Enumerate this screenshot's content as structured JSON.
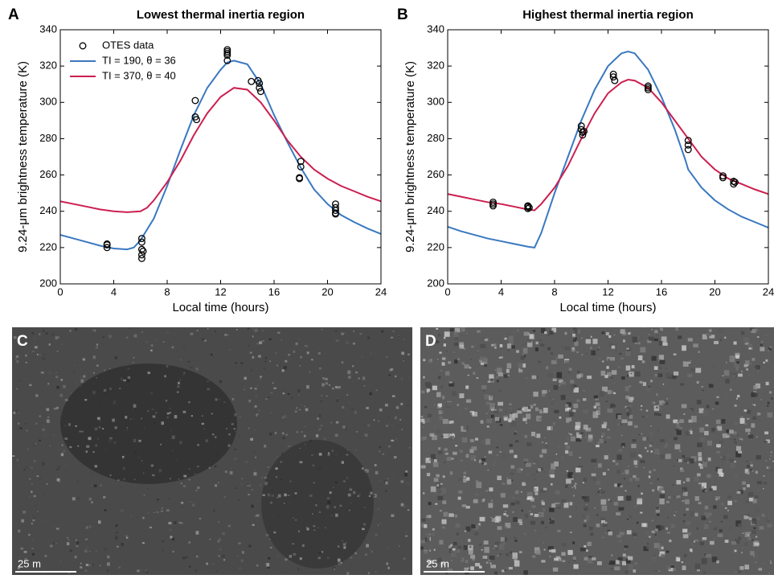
{
  "chart_data": [
    {
      "type": "line",
      "panel_label": "A",
      "title": "Lowest thermal inertia region",
      "x_label": "Local time (hours)",
      "y_label": "9.24-μm brightness temperature (K)",
      "xlim": [
        0,
        24
      ],
      "xticks": [
        0,
        4,
        8,
        12,
        16,
        20,
        24
      ],
      "ylim": [
        200,
        340
      ],
      "yticks": [
        200,
        220,
        240,
        260,
        280,
        300,
        320,
        340
      ],
      "legend": "upper left",
      "series": [
        {
          "name": "OTES data",
          "style": "markers",
          "color": "#000000",
          "x": [
            3.5,
            3.5,
            3.5,
            6.1,
            6.1,
            6.1,
            6.2,
            6.1,
            6.1,
            10.1,
            10.1,
            10.2,
            12.5,
            12.5,
            12.5,
            12.5,
            12.5,
            14.3,
            14.8,
            14.9,
            14.9,
            15,
            17.9,
            17.9,
            18,
            18,
            20.6,
            20.6,
            20.6,
            20.6,
            20.6
          ],
          "values": [
            222,
            220,
            221.5,
            225,
            223,
            219,
            218,
            216,
            214,
            301,
            292,
            290.5,
            329,
            328,
            327,
            326,
            323,
            311.5,
            312,
            310.5,
            308,
            306,
            258,
            258.5,
            264.5,
            267.5,
            244,
            242,
            240.5,
            239,
            238.5
          ]
        },
        {
          "name": "TI = 190, θ = 36",
          "style": "line",
          "color": "#3a78c0",
          "x": [
            0,
            1,
            2,
            3,
            4,
            5,
            5.5,
            6,
            7,
            8,
            9,
            10,
            11,
            12,
            12.5,
            13,
            14,
            15,
            16,
            17,
            18,
            19,
            20,
            21,
            22,
            23,
            24
          ],
          "values": [
            227,
            225,
            223,
            221,
            219.5,
            219,
            220,
            224,
            236,
            254,
            274,
            293,
            308,
            318,
            322,
            323,
            321,
            310,
            293,
            278,
            264,
            252,
            244,
            238,
            234,
            230.5,
            227.5
          ]
        },
        {
          "name": "TI = 370, θ = 40",
          "style": "line",
          "color": "#cc1f4f",
          "x": [
            0,
            1,
            2,
            3,
            4,
            5,
            6,
            6.5,
            7,
            8,
            9,
            10,
            11,
            12,
            13,
            14,
            15,
            16,
            17,
            18,
            19,
            20,
            21,
            22,
            23,
            24
          ],
          "values": [
            245.5,
            244,
            242.5,
            241,
            240,
            239.5,
            240,
            242,
            246,
            256,
            268,
            282,
            294,
            303,
            308,
            307,
            300,
            290,
            279,
            270,
            263,
            258,
            254,
            251,
            248,
            245.5
          ]
        }
      ]
    },
    {
      "type": "line",
      "panel_label": "B",
      "title": "Highest thermal inertia region",
      "x_label": "Local time (hours)",
      "y_label": "9.24-μm brightness temperature (K)",
      "xlim": [
        0,
        24
      ],
      "xticks": [
        0,
        4,
        8,
        12,
        16,
        20,
        24
      ],
      "ylim": [
        200,
        340
      ],
      "yticks": [
        200,
        220,
        240,
        260,
        280,
        300,
        320,
        340
      ],
      "series": [
        {
          "style": "markers",
          "color": "#000000",
          "x": [
            3.4,
            3.4,
            3.4,
            6,
            6,
            6,
            6.1,
            10,
            10,
            10.1,
            10.1,
            10.2,
            12.4,
            12.4,
            12.5,
            15,
            15,
            15,
            18,
            18,
            18,
            20.6,
            20.6,
            21.4,
            21.4,
            21.5
          ],
          "values": [
            245,
            244,
            243,
            243,
            242.5,
            241.5,
            242,
            287,
            285,
            283.5,
            282,
            284,
            315.5,
            314,
            312,
            309,
            308,
            307,
            279,
            276.5,
            274,
            259.5,
            258.5,
            256.5,
            255,
            256
          ]
        },
        {
          "style": "line",
          "color": "#3a78c0",
          "x": [
            0,
            1,
            2,
            3,
            4,
            5,
            6,
            6.5,
            7,
            8,
            9,
            10,
            11,
            12,
            13,
            13.5,
            14,
            15,
            16,
            17,
            17.8,
            18,
            19,
            20,
            21,
            22,
            23,
            24
          ],
          "values": [
            231.5,
            229,
            227,
            225,
            223.5,
            222,
            220.5,
            220,
            228,
            250,
            270,
            290,
            307,
            320,
            327,
            328,
            327,
            318,
            303,
            285,
            268,
            263,
            253,
            246,
            241,
            237,
            234,
            231
          ]
        },
        {
          "style": "line",
          "color": "#cc1f4f",
          "x": [
            0,
            1,
            2,
            3,
            4,
            5,
            6,
            6.5,
            7,
            8,
            9,
            10,
            11,
            12,
            13,
            13.5,
            14,
            15,
            16,
            17,
            18,
            19,
            20,
            21,
            22,
            23,
            24
          ],
          "values": [
            249.5,
            248,
            246.5,
            245,
            244,
            242.5,
            241,
            240.5,
            244,
            253,
            265,
            280,
            294,
            305,
            311,
            312.5,
            312,
            308,
            300,
            290,
            280,
            270,
            263,
            258,
            255,
            252,
            249.5
          ]
        }
      ]
    }
  ],
  "images": [
    {
      "panel_label": "C",
      "scale_bar": "25 m"
    },
    {
      "panel_label": "D",
      "scale_bar": "25 m"
    }
  ]
}
